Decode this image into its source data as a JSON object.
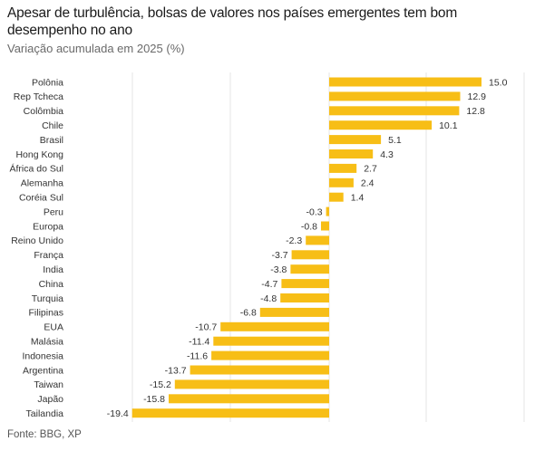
{
  "header": {
    "title": "Apesar de turbulência, bolsas de valores nos países emergentes tem bom desempenho no ano",
    "subtitle": "Variação acumulada em 2025 (%)"
  },
  "footer": {
    "source": "Fonte: BBG, XP"
  },
  "colors": {
    "bar": "#F7BE16",
    "grid": "#e6e6e6",
    "text": "#333333"
  },
  "chart_data": {
    "type": "bar",
    "orientation": "horizontal",
    "title": "Apesar de turbulência, bolsas de valores nos países emergentes tem bom desempenho no ano",
    "subtitle": "Variação acumulada em 2025 (%)",
    "categories": [
      "Polônia",
      "Rep Tcheca",
      "Colômbia",
      "Chile",
      "Brasil",
      "Hong Kong",
      "África do Sul",
      "Alemanha",
      "Coréia Sul",
      "Peru",
      "Europa",
      "Reino Unido",
      "França",
      "India",
      "China",
      "Turquia",
      "Filipinas",
      "EUA",
      "Malásia",
      "Indonesia",
      "Argentina",
      "Taiwan",
      "Japão",
      "Tailandia"
    ],
    "values": [
      15.0,
      12.9,
      12.8,
      10.1,
      5.1,
      4.3,
      2.7,
      2.4,
      1.4,
      -0.3,
      -0.8,
      -2.3,
      -3.7,
      -3.8,
      -4.7,
      -4.8,
      -6.8,
      -10.7,
      -11.4,
      -11.6,
      -13.7,
      -15.2,
      -15.8,
      -19.4
    ],
    "value_labels": [
      "15.0",
      "12.9",
      "12.8",
      "10.1",
      "5.1",
      "4.3",
      "2.7",
      "2.4",
      "1.4",
      "-0.3",
      "-0.8",
      "-2.3",
      "-3.7",
      "-3.8",
      "-4.7",
      "-4.8",
      "-6.8",
      "-10.7",
      "-11.4",
      "-11.6",
      "-13.7",
      "-15.2",
      "-15.8",
      "-19.4"
    ],
    "xlim": [
      -20,
      20
    ],
    "grid": true,
    "legend": "none"
  }
}
